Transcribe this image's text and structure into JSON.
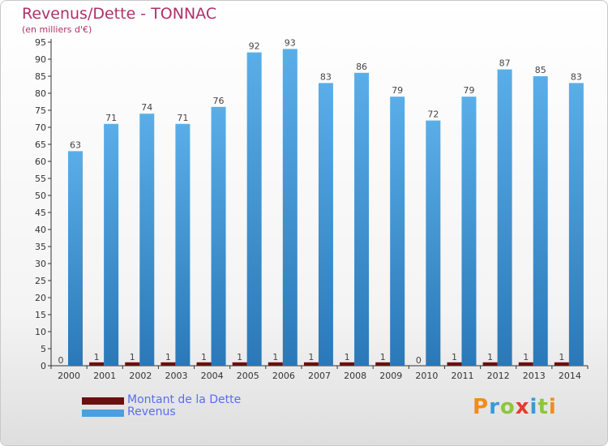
{
  "header": {
    "title": "Revenus/Dette - TONNAC",
    "subtitle": "(en milliers d'€)"
  },
  "colors": {
    "dette": "#6b0f0f",
    "revenus": "#4a9fe0",
    "revenus_dark": "#2a78b8",
    "title": "#b0306a",
    "legend_text": "#5a6cf0"
  },
  "legend": {
    "items": [
      {
        "label": "Montant de la Dette",
        "color": "#6b0f0f"
      },
      {
        "label": "Revenus",
        "color": "#4a9fe0"
      }
    ]
  },
  "logo": {
    "text": "Proxiti",
    "letters": [
      {
        "ch": "P",
        "color": "#f08c1e"
      },
      {
        "ch": "r",
        "color": "#3a9ad8"
      },
      {
        "ch": "o",
        "color": "#8cc63e"
      },
      {
        "ch": "x",
        "color": "#e83a2e"
      },
      {
        "ch": "i",
        "color": "#3a9ad8"
      },
      {
        "ch": "t",
        "color": "#8cc63e"
      },
      {
        "ch": "i",
        "color": "#f08c1e"
      }
    ]
  },
  "chart_data": {
    "type": "bar",
    "categories": [
      "2000",
      "2001",
      "2002",
      "2003",
      "2004",
      "2005",
      "2006",
      "2007",
      "2008",
      "2009",
      "2010",
      "2011",
      "2012",
      "2013",
      "2014"
    ],
    "series": [
      {
        "name": "Montant de la Dette",
        "values": [
          0,
          1,
          1,
          1,
          1,
          1,
          1,
          1,
          1,
          1,
          0,
          1,
          1,
          1,
          1
        ]
      },
      {
        "name": "Revenus",
        "values": [
          63,
          71,
          74,
          71,
          76,
          92,
          93,
          83,
          86,
          79,
          72,
          79,
          87,
          85,
          83
        ]
      }
    ],
    "title": "Revenus/Dette - TONNAC",
    "ylabel": "(en milliers d'€)",
    "ylim": [
      0,
      95
    ],
    "ytick_step": 5,
    "grid": false,
    "legend_position": "bottom-left"
  }
}
